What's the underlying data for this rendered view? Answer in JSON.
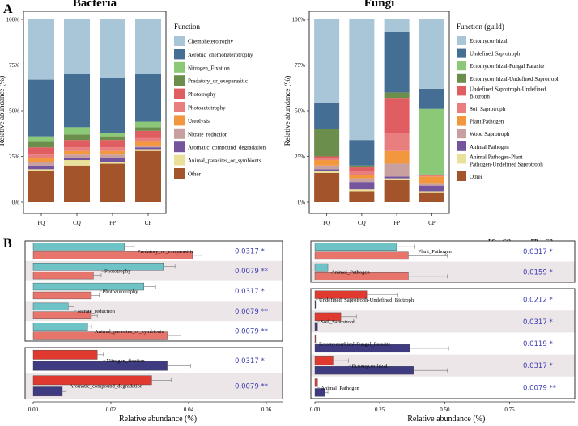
{
  "panel_labels": {
    "a": "A",
    "b": "B"
  },
  "comp_legend": [
    "FQ",
    "CQ",
    "FP",
    "CP"
  ],
  "colors": {
    "FQ": "#6ec3c6",
    "CQ": "#e8756b",
    "FP": "#e03a30",
    "CP": "#3e3b80",
    "shade": "#ede6e9"
  },
  "chart_data": [
    {
      "id": "bacteria",
      "type": "stacked-bar",
      "title": "Bacteria",
      "ylabel": "Relative abundance (%)",
      "yticks": [
        "0%",
        "25%",
        "50%",
        "75%",
        "100%"
      ],
      "categories": [
        "FQ",
        "CQ",
        "FP",
        "CP"
      ],
      "legend_title": "Function",
      "series": [
        {
          "name": "Other",
          "color": "#a4542a",
          "values": [
            17,
            20,
            21,
            28
          ]
        },
        {
          "name": "Animal_parasites_or_symbionts",
          "color": "#e9e09a",
          "values": [
            1,
            3,
            1,
            1
          ]
        },
        {
          "name": "Aromatic_compound_degradation",
          "color": "#74549c",
          "values": [
            2,
            1,
            2,
            1
          ]
        },
        {
          "name": "Nitrate_reduction",
          "color": "#c9a0a0",
          "values": [
            2,
            2,
            2,
            1
          ]
        },
        {
          "name": "Ureolysis",
          "color": "#f3973e",
          "values": [
            2,
            2,
            2,
            2
          ]
        },
        {
          "name": "Photoautotrophy",
          "color": "#e97e7e",
          "values": [
            2,
            2,
            2,
            2
          ]
        },
        {
          "name": "Phototrophy",
          "color": "#e05e61",
          "values": [
            4,
            4,
            4,
            4
          ]
        },
        {
          "name": "Predatory_or_exoparasitic",
          "color": "#6c8e4d",
          "values": [
            3,
            3,
            2,
            2
          ]
        },
        {
          "name": "Nitrogen_Fixation",
          "color": "#8bc878",
          "values": [
            3,
            4,
            2,
            3
          ]
        },
        {
          "name": "Aerobic_chemoheterotrophy",
          "color": "#456e94",
          "values": [
            31,
            29,
            30,
            26
          ]
        },
        {
          "name": "Chemoheterotrophy",
          "color": "#a9c6d8",
          "values": [
            33,
            30,
            32,
            30
          ]
        }
      ]
    },
    {
      "id": "fungi",
      "type": "stacked-bar",
      "title": "Fungi",
      "ylabel": "Relative abundance (%)",
      "yticks": [
        "0%",
        "25%",
        "50%",
        "75%",
        "100%"
      ],
      "categories": [
        "FQ",
        "CQ",
        "FP",
        "CP"
      ],
      "legend_title": "Function (guild)",
      "series": [
        {
          "name": "Other",
          "color": "#a4542a",
          "values": [
            16,
            6,
            12,
            5
          ]
        },
        {
          "name": "Animal Pathogen-Plant Pathogen-Undefined Saprotroph",
          "color": "#e9e09a",
          "values": [
            1,
            1,
            1,
            1
          ]
        },
        {
          "name": "Animal Pathogen",
          "color": "#74549c",
          "values": [
            1,
            4,
            1,
            3
          ]
        },
        {
          "name": "Wood Saprotroph",
          "color": "#c9a0a0",
          "values": [
            2,
            2,
            7,
            1
          ]
        },
        {
          "name": "Plant Pathogen",
          "color": "#f3973e",
          "values": [
            3,
            2,
            7,
            4
          ]
        },
        {
          "name": "Soil Saprotroph",
          "color": "#e97e7e",
          "values": [
            1,
            2,
            10,
            1
          ]
        },
        {
          "name": "Undefined Saprotroph-Undefined Biotroph",
          "color": "#e05e61",
          "values": [
            1,
            2,
            19,
            0
          ]
        },
        {
          "name": "Ectomycorrhizal-Undefined Saprotroph",
          "color": "#6c8e4d",
          "values": [
            15,
            1,
            3,
            0
          ]
        },
        {
          "name": "Ectomycorrhizal-Fungal Parasite",
          "color": "#8bc878",
          "values": [
            0,
            0,
            0,
            36
          ]
        },
        {
          "name": "Undefined Saprotroph",
          "color": "#456e94",
          "values": [
            14,
            14,
            33,
            11
          ]
        },
        {
          "name": "Ectomycorrhizal",
          "color": "#a9c6d8",
          "values": [
            46,
            66,
            7,
            38
          ]
        }
      ]
    },
    {
      "id": "bacteria_compare",
      "type": "grouped-hbar",
      "xlabel": "Relative abundance (%)",
      "xticks": [
        "0.00",
        "0.02",
        "0.04",
        "0.06"
      ],
      "xlim": [
        0,
        0.06
      ],
      "groups": [
        {
          "pair": [
            "FQ",
            "CQ"
          ],
          "rows": [
            {
              "label": "Predatory_or_exoparasitic",
              "a": 0.0235,
              "b": 0.041,
              "err_a": 0.0025,
              "err_b": 0.0025,
              "p": "0.0317 *"
            },
            {
              "label": "Phototrophy",
              "a": 0.0335,
              "b": 0.0155,
              "err_a": 0.003,
              "err_b": 0.002,
              "p": "0.0079 **"
            },
            {
              "label": "Photoautotrophy",
              "a": 0.0285,
              "b": 0.015,
              "err_a": 0.003,
              "err_b": 0.002,
              "p": "0.0317 *"
            },
            {
              "label": "Nitrate_reduction",
              "a": 0.009,
              "b": 0.015,
              "err_a": 0.0015,
              "err_b": 0.0015,
              "p": "0.0079 **"
            },
            {
              "label": "Animal_parasites_or_symbionts",
              "a": 0.014,
              "b": 0.0345,
              "err_a": 0.001,
              "err_b": 0.0035,
              "p": "0.0079 **"
            }
          ]
        },
        {
          "pair": [
            "FP",
            "CP"
          ],
          "rows": [
            {
              "label": "Nitrogen_fixation",
              "a": 0.0165,
              "b": 0.0345,
              "err_a": 0.0015,
              "err_b": 0.006,
              "p": "0.0317 *"
            },
            {
              "label": "Aromatic_compound_degradation",
              "a": 0.0305,
              "b": 0.0075,
              "err_a": 0.005,
              "err_b": 0.001,
              "p": "0.0079 **"
            }
          ]
        }
      ]
    },
    {
      "id": "fungi_compare",
      "type": "grouped-hbar",
      "xlabel": "Relative abundance (%)",
      "xticks": [
        "0.00",
        "0.25",
        "0.50",
        "0.75"
      ],
      "xlim": [
        0,
        0.95
      ],
      "groups": [
        {
          "pair": [
            "FQ",
            "CQ"
          ],
          "rows": [
            {
              "label": "Plant_Pathogen",
              "a": 0.315,
              "b": 0.36,
              "err_a": 0.07,
              "err_b": 0.15,
              "p": "0.0317 *"
            },
            {
              "label": "Animal_Pathogen",
              "a": 0.05,
              "b": 0.36,
              "err_a": 0.0,
              "err_b": 0.15,
              "p": "0.0159 *"
            }
          ]
        },
        {
          "pair": [
            "FP",
            "CP"
          ],
          "rows": [
            {
              "label": "Undefined_Saprotroph-Undefined_Biotroph",
              "a": 0.2,
              "b": 0.003,
              "err_a": 0.12,
              "err_b": 0.0,
              "p": "0.0212 *"
            },
            {
              "label": "Soil_Saprotroph",
              "a": 0.1,
              "b": 0.01,
              "err_a": 0.06,
              "err_b": 0.0,
              "p": "0.0317 *"
            },
            {
              "label": "Ectomycorrhizal-Fungal_Parasite",
              "a": 0.003,
              "b": 0.365,
              "err_a": 0.0,
              "err_b": 0.15,
              "p": "0.0119 *"
            },
            {
              "label": "Ectomycorrhizal",
              "a": 0.07,
              "b": 0.38,
              "err_a": 0.06,
              "err_b": 0.13,
              "p": "0.0317 *"
            },
            {
              "label": "Animal_Pathogen",
              "a": 0.01,
              "b": 0.04,
              "err_a": 0.0,
              "err_b": 0.01,
              "p": "0.0079 **"
            }
          ]
        }
      ]
    }
  ]
}
